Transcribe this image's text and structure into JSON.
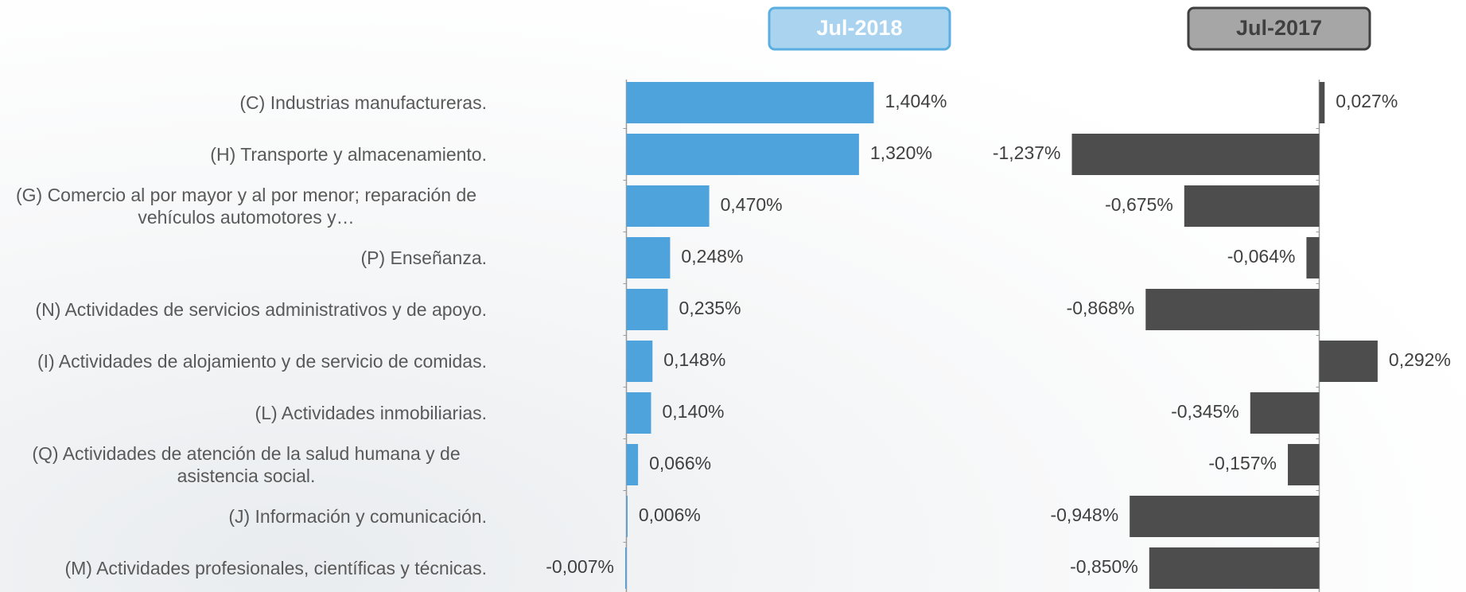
{
  "chart_data": {
    "type": "bar",
    "orientation": "horizontal",
    "categories": [
      "(C) Industrias manufactureras.",
      "(H) Transporte y almacenamiento.",
      "(G) Comercio al por mayor y al por menor; reparación de vehículos automotores y…",
      "(P) Enseñanza.",
      "(N) Actividades de servicios administrativos y de apoyo.",
      "(I) Actividades de alojamiento y de servicio de comidas.",
      "(L) Actividades inmobiliarias.",
      "(Q) Actividades de atención de la salud humana y de asistencia social.",
      "(J) Información y comunicación.",
      "(M) Actividades profesionales, científicas y técnicas."
    ],
    "series": [
      {
        "name": "Jul-2018",
        "color": "#4fa3dc",
        "values": [
          1.404,
          1.32,
          0.47,
          0.248,
          0.235,
          0.148,
          0.14,
          0.066,
          0.006,
          -0.007
        ],
        "value_labels": [
          "1,404%",
          "1,320%",
          "0,470%",
          "0,248%",
          "0,235%",
          "0,148%",
          "0,140%",
          "0,066%",
          "0,006%",
          "-0,007%"
        ]
      },
      {
        "name": "Jul-2017",
        "color": "#4d4d4d",
        "values": [
          0.027,
          -1.237,
          -0.675,
          -0.064,
          -0.868,
          0.292,
          -0.345,
          -0.157,
          -0.948,
          -0.85
        ],
        "value_labels": [
          "0,027%",
          "-1,237%",
          "-0,675%",
          "-0,064%",
          "-0,868%",
          "0,292%",
          "-0,345%",
          "-0,157%",
          "-0,948%",
          "-0,850%"
        ]
      }
    ]
  }
}
